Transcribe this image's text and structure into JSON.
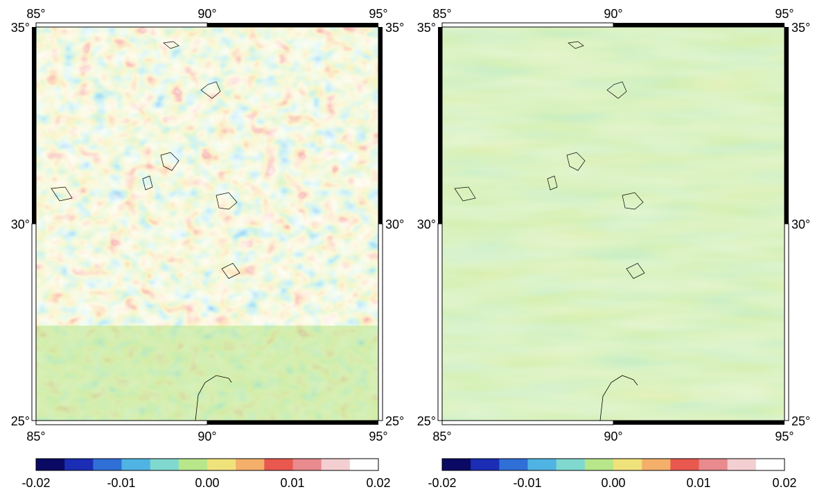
{
  "colorbar": {
    "colors": [
      "#0a0a64",
      "#1a2db4",
      "#2f6fd6",
      "#4fb4e4",
      "#7fd9cf",
      "#b8e68a",
      "#f0e27a",
      "#f4b06a",
      "#e8584f",
      "#e88a8e",
      "#f4cfd2",
      "#ffffff"
    ],
    "tick_labels": [
      "-0.02",
      "-0.01",
      "0.00",
      "0.01",
      "0.02"
    ],
    "tick_values": [
      -0.02,
      -0.01,
      0.0,
      0.01,
      0.02
    ],
    "range": [
      -0.02,
      0.02
    ]
  },
  "panels": [
    {
      "id": "left",
      "lon_range": [
        85,
        95
      ],
      "lat_range": [
        25,
        35
      ],
      "lon_ticks": [
        "85°",
        "90°",
        "95°"
      ],
      "lat_ticks": [
        "25°",
        "30°",
        "35°"
      ],
      "pattern": "high-variance"
    },
    {
      "id": "right",
      "lon_range": [
        85,
        95
      ],
      "lat_range": [
        25,
        35
      ],
      "lon_ticks": [
        "85°",
        "90°",
        "95°"
      ],
      "lat_ticks": [
        "25°",
        "30°",
        "35°"
      ],
      "pattern": "low-variance"
    }
  ]
}
